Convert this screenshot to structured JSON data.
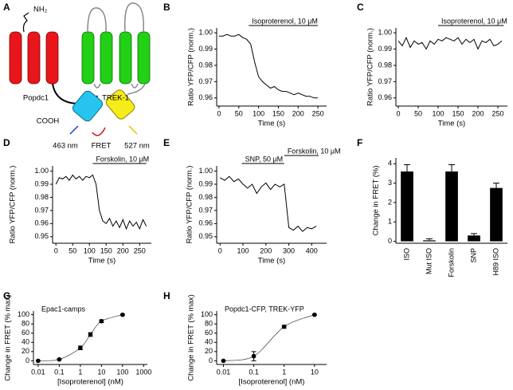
{
  "diagram": {
    "panel": "A",
    "texts": [
      "NH₂",
      "Popdc1",
      "TREK-1",
      "COOH",
      "463 nm",
      "FRET",
      "527 nm"
    ]
  },
  "chart_data": [
    {
      "type": "line",
      "label": "B",
      "xlabel": "Time (s)",
      "ylabel": "Ratio YFP/CFP (norm.)",
      "color": "#000000",
      "xlim": [
        -6,
        272
      ],
      "xticks": [
        0,
        50,
        100,
        150,
        200,
        250
      ],
      "ylim": [
        0.955,
        1.003
      ],
      "yticks": [
        0.96,
        0.97,
        0.98,
        0.99,
        {
          "value": 1,
          "label": "1.00"
        }
      ],
      "annotations": [
        {
          "text": "Isoproterenol, 10 μM",
          "x": [
            75,
            250
          ]
        }
      ],
      "x": [
        0,
        10,
        20,
        30,
        40,
        50,
        60,
        70,
        80,
        90,
        100,
        110,
        120,
        130,
        140,
        150,
        160,
        170,
        180,
        190,
        200,
        210,
        220,
        230,
        240,
        250
      ],
      "values": [
        0.998,
        0.998,
        0.999,
        0.998,
        0.998,
        0.999,
        0.997,
        0.996,
        0.993,
        0.982,
        0.973,
        0.97,
        0.968,
        0.966,
        0.967,
        0.965,
        0.964,
        0.964,
        0.963,
        0.962,
        0.963,
        0.962,
        0.961,
        0.961,
        0.96,
        0.96
      ]
    },
    {
      "type": "line",
      "label": "C",
      "xlabel": "Time (s)",
      "ylabel": "Ratio YFP/CFP (norm.)",
      "color": "#000000",
      "xlim": [
        -6,
        274
      ],
      "xticks": [
        0,
        50,
        100,
        150,
        200,
        250
      ],
      "ylim": [
        0.955,
        1.003
      ],
      "yticks": [
        0.96,
        0.97,
        0.98,
        0.99,
        {
          "value": 1,
          "label": "1.00"
        }
      ],
      "annotations": [
        {
          "text": "Isoproterenol, 10 μM",
          "x": [
            100,
            265
          ]
        }
      ],
      "x": [
        0,
        10,
        20,
        30,
        40,
        50,
        60,
        70,
        80,
        90,
        100,
        110,
        120,
        130,
        140,
        150,
        160,
        170,
        180,
        190,
        200,
        210,
        220,
        230,
        240,
        250,
        260
      ],
      "values": [
        0.995,
        0.992,
        0.997,
        0.991,
        0.995,
        0.993,
        0.994,
        0.99,
        0.995,
        0.993,
        0.996,
        0.995,
        0.997,
        0.996,
        0.995,
        0.997,
        0.993,
        0.996,
        0.994,
        0.996,
        0.99,
        0.995,
        0.994,
        0.996,
        0.992,
        0.993,
        0.995
      ]
    },
    {
      "type": "line",
      "label": "D",
      "xlabel": "Time (s)",
      "ylabel": "Ratio YFP/CFP (norm.)",
      "color": "#000000",
      "xlim": [
        -10,
        285
      ],
      "xticks": [
        0,
        50,
        100,
        150,
        200,
        250
      ],
      "ylim": [
        0.945,
        1.004
      ],
      "yticks": [
        0.95,
        0.96,
        0.97,
        0.98,
        0.99,
        {
          "value": 1,
          "label": "1.00"
        }
      ],
      "annotations": [
        {
          "text": "Forskolin, 10 μM",
          "x": [
            110,
            270
          ]
        }
      ],
      "x": [
        0,
        10,
        20,
        30,
        40,
        50,
        60,
        70,
        80,
        90,
        100,
        110,
        120,
        130,
        140,
        150,
        160,
        170,
        180,
        190,
        200,
        210,
        220,
        230,
        240,
        250,
        260,
        270
      ],
      "values": [
        0.99,
        0.995,
        0.994,
        0.996,
        0.993,
        0.997,
        0.994,
        0.996,
        0.993,
        0.996,
        0.995,
        0.997,
        0.99,
        0.97,
        0.962,
        0.96,
        0.964,
        0.958,
        0.962,
        0.957,
        0.963,
        0.956,
        0.962,
        0.958,
        0.961,
        0.956,
        0.963,
        0.958
      ]
    },
    {
      "type": "line",
      "label": "E",
      "xlabel": "Time (s)",
      "ylabel": "Ratio YFP/CFP (norm.)",
      "color": "#000000",
      "xlim": [
        -15,
        465
      ],
      "xticks": [
        0,
        100,
        200,
        300,
        400
      ],
      "ylim": [
        0.945,
        1.004
      ],
      "yticks": [
        0.95,
        0.96,
        0.97,
        0.98,
        0.99,
        {
          "value": 1,
          "label": "1.00"
        }
      ],
      "annotations": [
        {
          "text": "SNP, 50 μM",
          "x": [
            95,
            280
          ]
        },
        {
          "text": "Forskolin, 10 μM",
          "x": [
            280,
            430
          ]
        }
      ],
      "x": [
        0,
        20,
        40,
        60,
        80,
        100,
        120,
        140,
        160,
        180,
        200,
        220,
        240,
        260,
        280,
        300,
        320,
        340,
        360,
        380,
        400,
        420
      ],
      "values": [
        0.995,
        0.993,
        0.996,
        0.992,
        0.994,
        0.99,
        0.987,
        0.99,
        0.983,
        0.988,
        0.991,
        0.986,
        0.99,
        0.988,
        0.99,
        0.957,
        0.955,
        0.958,
        0.954,
        0.957,
        0.956,
        0.958
      ]
    },
    {
      "type": "bar",
      "label": "F",
      "ylabel": "Change in FRET (%)",
      "color": "#000000",
      "categories": [
        "ISO",
        "Mut ISO",
        "Forskolin",
        "SNP",
        "H89 ISO"
      ],
      "values": [
        3.6,
        0.05,
        3.6,
        0.3,
        2.75
      ],
      "errors": [
        0.35,
        0.08,
        0.35,
        0.1,
        0.25
      ],
      "ylim": [
        -0.1,
        4.3
      ],
      "yticks": [
        0,
        1,
        2,
        3,
        4
      ]
    },
    {
      "type": "scatter",
      "label": "G",
      "note": "Epac1-camps",
      "xlabel": "[Isoproterenol] (nM)",
      "ylabel": "Change in FRET (% max)",
      "color": "#000000",
      "xscale": "log",
      "xlim": [
        0.006,
        1500
      ],
      "xticks": [
        0.01,
        0.1,
        1,
        10,
        100,
        1000
      ],
      "ylim": [
        -8,
        108
      ],
      "yticks": [
        0,
        20,
        40,
        60,
        80,
        100
      ],
      "x": [
        0.01,
        0.1,
        1,
        3,
        10,
        100
      ],
      "values": [
        0,
        3,
        28,
        57,
        86,
        100
      ],
      "errors": [
        0,
        1,
        4,
        4,
        3,
        1
      ]
    },
    {
      "type": "scatter",
      "label": "H",
      "note": "Popdc1-CFP, TREK-YFP",
      "xlabel": "[Isoproterenol] (nM)",
      "ylabel": "Change in FRET (% max)",
      "color": "#000000",
      "xscale": "log",
      "xlim": [
        0.006,
        25
      ],
      "xticks": [
        0.01,
        0.1,
        1,
        10
      ],
      "ylim": [
        -8,
        108
      ],
      "yticks": [
        0,
        20,
        40,
        60,
        80,
        100
      ],
      "x": [
        0.01,
        0.1,
        1,
        10
      ],
      "values": [
        0,
        10,
        74,
        100
      ],
      "errors": [
        0,
        10,
        3,
        1
      ]
    }
  ]
}
